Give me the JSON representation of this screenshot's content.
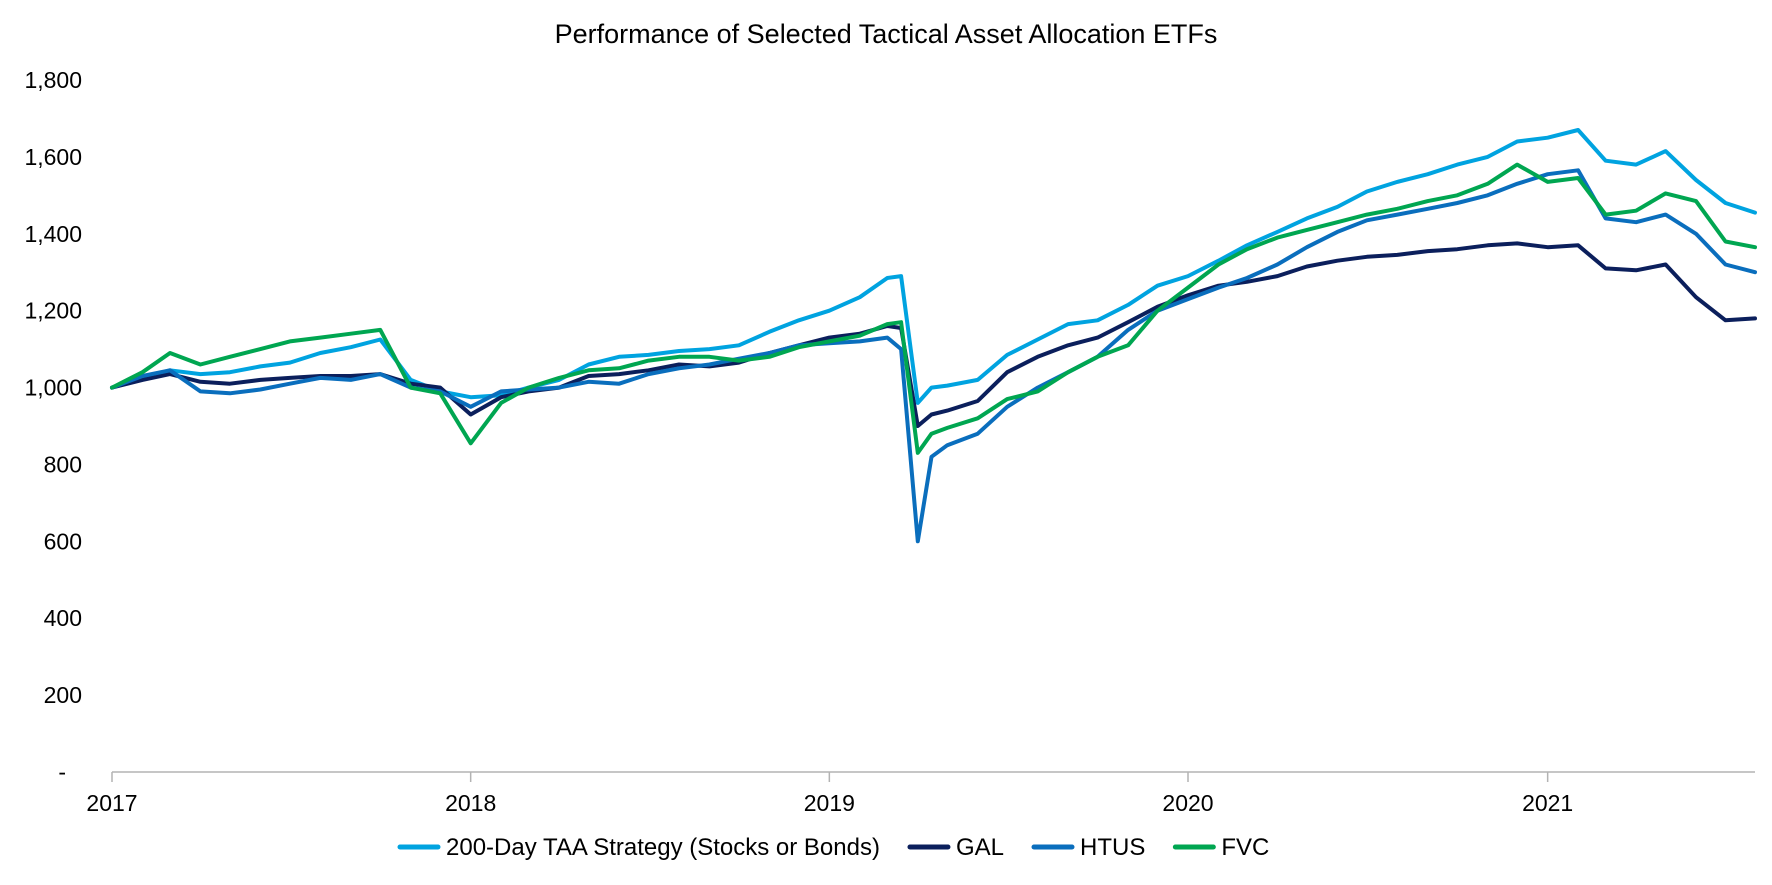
{
  "chart_data": {
    "type": "line",
    "title": "Performance of Selected Tactical Asset Allocation ETFs",
    "xlabel": "",
    "ylabel": "",
    "x_range": [
      "2017-01-01",
      "2021-07-31"
    ],
    "x_ticks": [
      "2017",
      "2018",
      "2019",
      "2020",
      "2021"
    ],
    "ylim": [
      0,
      1800
    ],
    "y_ticks": [
      {
        "value": 0,
        "label": "-"
      },
      {
        "value": 200,
        "label": "200"
      },
      {
        "value": 400,
        "label": "400"
      },
      {
        "value": 600,
        "label": "600"
      },
      {
        "value": 800,
        "label": "800"
      },
      {
        "value": 1000,
        "label": "1,000"
      },
      {
        "value": 1200,
        "label": "1,200"
      },
      {
        "value": 1400,
        "label": "1,400"
      },
      {
        "value": 1600,
        "label": "1,600"
      },
      {
        "value": 1800,
        "label": "1,800"
      }
    ],
    "grid": false,
    "legend_position": "bottom",
    "series": [
      {
        "name": "200-Day TAA Strategy (Stocks or Bonds)",
        "color": "#00a3e0",
        "points": [
          [
            "2017-01-01",
            1000
          ],
          [
            "2017-02-01",
            1025
          ],
          [
            "2017-03-01",
            1045
          ],
          [
            "2017-04-01",
            1035
          ],
          [
            "2017-05-01",
            1040
          ],
          [
            "2017-06-01",
            1055
          ],
          [
            "2017-07-01",
            1065
          ],
          [
            "2017-08-01",
            1090
          ],
          [
            "2017-09-01",
            1105
          ],
          [
            "2017-10-01",
            1125
          ],
          [
            "2017-11-01",
            1020
          ],
          [
            "2017-12-01",
            990
          ],
          [
            "2018-01-01",
            975
          ],
          [
            "2018-02-01",
            980
          ],
          [
            "2018-03-01",
            1000
          ],
          [
            "2018-04-01",
            1020
          ],
          [
            "2018-05-01",
            1060
          ],
          [
            "2018-06-01",
            1080
          ],
          [
            "2018-07-01",
            1085
          ],
          [
            "2018-08-01",
            1095
          ],
          [
            "2018-09-01",
            1100
          ],
          [
            "2018-10-01",
            1110
          ],
          [
            "2018-11-01",
            1145
          ],
          [
            "2018-12-01",
            1175
          ],
          [
            "2019-01-01",
            1200
          ],
          [
            "2019-02-01",
            1235
          ],
          [
            "2019-03-01",
            1285
          ],
          [
            "2019-03-15",
            1290
          ],
          [
            "2019-04-01",
            960
          ],
          [
            "2019-04-15",
            1000
          ],
          [
            "2019-05-01",
            1005
          ],
          [
            "2019-06-01",
            1020
          ],
          [
            "2019-07-01",
            1085
          ],
          [
            "2019-08-01",
            1125
          ],
          [
            "2019-09-01",
            1165
          ],
          [
            "2019-10-01",
            1175
          ],
          [
            "2019-11-01",
            1215
          ],
          [
            "2019-12-01",
            1265
          ],
          [
            "2020-01-01",
            1290
          ],
          [
            "2020-02-01",
            1330
          ],
          [
            "2020-03-01",
            1370
          ],
          [
            "2020-04-01",
            1405
          ],
          [
            "2020-05-01",
            1440
          ],
          [
            "2020-06-01",
            1470
          ],
          [
            "2020-07-01",
            1510
          ],
          [
            "2020-08-01",
            1535
          ],
          [
            "2020-09-01",
            1555
          ],
          [
            "2020-10-01",
            1580
          ],
          [
            "2020-11-01",
            1600
          ],
          [
            "2020-12-01",
            1640
          ],
          [
            "2021-01-01",
            1650
          ],
          [
            "2021-02-01",
            1670
          ],
          [
            "2021-03-01",
            1590
          ],
          [
            "2021-04-01",
            1580
          ],
          [
            "2021-05-01",
            1615
          ],
          [
            "2021-06-01",
            1540
          ],
          [
            "2021-07-01",
            1480
          ],
          [
            "2021-07-31",
            1455
          ]
        ]
      },
      {
        "name": "GAL",
        "color": "#0b1f5c",
        "points": [
          [
            "2017-01-01",
            1000
          ],
          [
            "2017-02-01",
            1020
          ],
          [
            "2017-03-01",
            1035
          ],
          [
            "2017-04-01",
            1015
          ],
          [
            "2017-05-01",
            1010
          ],
          [
            "2017-06-01",
            1020
          ],
          [
            "2017-07-01",
            1025
          ],
          [
            "2017-08-01",
            1030
          ],
          [
            "2017-09-01",
            1030
          ],
          [
            "2017-10-01",
            1035
          ],
          [
            "2017-11-01",
            1010
          ],
          [
            "2017-12-01",
            1000
          ],
          [
            "2018-01-01",
            930
          ],
          [
            "2018-02-01",
            975
          ],
          [
            "2018-03-01",
            990
          ],
          [
            "2018-04-01",
            1000
          ],
          [
            "2018-05-01",
            1030
          ],
          [
            "2018-06-01",
            1035
          ],
          [
            "2018-07-01",
            1045
          ],
          [
            "2018-08-01",
            1060
          ],
          [
            "2018-09-01",
            1055
          ],
          [
            "2018-10-01",
            1065
          ],
          [
            "2018-11-01",
            1090
          ],
          [
            "2018-12-01",
            1110
          ],
          [
            "2019-01-01",
            1130
          ],
          [
            "2019-02-01",
            1140
          ],
          [
            "2019-03-01",
            1160
          ],
          [
            "2019-03-15",
            1155
          ],
          [
            "2019-04-01",
            900
          ],
          [
            "2019-04-15",
            930
          ],
          [
            "2019-05-01",
            940
          ],
          [
            "2019-06-01",
            965
          ],
          [
            "2019-07-01",
            1040
          ],
          [
            "2019-08-01",
            1080
          ],
          [
            "2019-09-01",
            1110
          ],
          [
            "2019-10-01",
            1130
          ],
          [
            "2019-11-01",
            1170
          ],
          [
            "2019-12-01",
            1210
          ],
          [
            "2020-01-01",
            1240
          ],
          [
            "2020-02-01",
            1265
          ],
          [
            "2020-03-01",
            1275
          ],
          [
            "2020-04-01",
            1290
          ],
          [
            "2020-05-01",
            1315
          ],
          [
            "2020-06-01",
            1330
          ],
          [
            "2020-07-01",
            1340
          ],
          [
            "2020-08-01",
            1345
          ],
          [
            "2020-09-01",
            1355
          ],
          [
            "2020-10-01",
            1360
          ],
          [
            "2020-11-01",
            1370
          ],
          [
            "2020-12-01",
            1375
          ],
          [
            "2021-01-01",
            1365
          ],
          [
            "2021-02-01",
            1370
          ],
          [
            "2021-03-01",
            1310
          ],
          [
            "2021-04-01",
            1305
          ],
          [
            "2021-05-01",
            1320
          ],
          [
            "2021-06-01",
            1235
          ],
          [
            "2021-07-01",
            1175
          ],
          [
            "2021-07-31",
            1180
          ]
        ]
      },
      {
        "name": "HTUS",
        "color": "#0a6ebd",
        "points": [
          [
            "2017-01-01",
            1000
          ],
          [
            "2017-02-01",
            1030
          ],
          [
            "2017-03-01",
            1045
          ],
          [
            "2017-04-01",
            990
          ],
          [
            "2017-05-01",
            985
          ],
          [
            "2017-06-01",
            995
          ],
          [
            "2017-07-01",
            1010
          ],
          [
            "2017-08-01",
            1025
          ],
          [
            "2017-09-01",
            1020
          ],
          [
            "2017-10-01",
            1035
          ],
          [
            "2017-11-01",
            1000
          ],
          [
            "2017-12-01",
            990
          ],
          [
            "2018-01-01",
            950
          ],
          [
            "2018-02-01",
            990
          ],
          [
            "2018-03-01",
            995
          ],
          [
            "2018-04-01",
            1000
          ],
          [
            "2018-05-01",
            1015
          ],
          [
            "2018-06-01",
            1010
          ],
          [
            "2018-07-01",
            1035
          ],
          [
            "2018-08-01",
            1050
          ],
          [
            "2018-09-01",
            1060
          ],
          [
            "2018-10-01",
            1075
          ],
          [
            "2018-11-01",
            1090
          ],
          [
            "2018-12-01",
            1110
          ],
          [
            "2019-01-01",
            1115
          ],
          [
            "2019-02-01",
            1120
          ],
          [
            "2019-03-01",
            1130
          ],
          [
            "2019-03-15",
            1100
          ],
          [
            "2019-04-01",
            600
          ],
          [
            "2019-04-15",
            820
          ],
          [
            "2019-05-01",
            850
          ],
          [
            "2019-06-01",
            880
          ],
          [
            "2019-07-01",
            950
          ],
          [
            "2019-08-01",
            1000
          ],
          [
            "2019-09-01",
            1040
          ],
          [
            "2019-10-01",
            1080
          ],
          [
            "2019-11-01",
            1150
          ],
          [
            "2019-12-01",
            1200
          ],
          [
            "2020-01-01",
            1230
          ],
          [
            "2020-02-01",
            1260
          ],
          [
            "2020-03-01",
            1285
          ],
          [
            "2020-04-01",
            1320
          ],
          [
            "2020-05-01",
            1365
          ],
          [
            "2020-06-01",
            1405
          ],
          [
            "2020-07-01",
            1435
          ],
          [
            "2020-08-01",
            1450
          ],
          [
            "2020-09-01",
            1465
          ],
          [
            "2020-10-01",
            1480
          ],
          [
            "2020-11-01",
            1500
          ],
          [
            "2020-12-01",
            1530
          ],
          [
            "2021-01-01",
            1555
          ],
          [
            "2021-02-01",
            1565
          ],
          [
            "2021-03-01",
            1440
          ],
          [
            "2021-04-01",
            1430
          ],
          [
            "2021-05-01",
            1450
          ],
          [
            "2021-06-01",
            1400
          ],
          [
            "2021-07-01",
            1320
          ],
          [
            "2021-07-31",
            1300
          ]
        ]
      },
      {
        "name": "FVC",
        "color": "#00a651",
        "points": [
          [
            "2017-01-01",
            1000
          ],
          [
            "2017-02-01",
            1040
          ],
          [
            "2017-03-01",
            1090
          ],
          [
            "2017-04-01",
            1060
          ],
          [
            "2017-05-01",
            1080
          ],
          [
            "2017-06-01",
            1100
          ],
          [
            "2017-07-01",
            1120
          ],
          [
            "2017-08-01",
            1130
          ],
          [
            "2017-09-01",
            1140
          ],
          [
            "2017-10-01",
            1150
          ],
          [
            "2017-11-01",
            1000
          ],
          [
            "2017-12-01",
            985
          ],
          [
            "2018-01-01",
            855
          ],
          [
            "2018-02-01",
            960
          ],
          [
            "2018-03-01",
            1000
          ],
          [
            "2018-04-01",
            1025
          ],
          [
            "2018-05-01",
            1045
          ],
          [
            "2018-06-01",
            1050
          ],
          [
            "2018-07-01",
            1070
          ],
          [
            "2018-08-01",
            1080
          ],
          [
            "2018-09-01",
            1080
          ],
          [
            "2018-10-01",
            1070
          ],
          [
            "2018-11-01",
            1080
          ],
          [
            "2018-12-01",
            1105
          ],
          [
            "2019-01-01",
            1120
          ],
          [
            "2019-02-01",
            1135
          ],
          [
            "2019-03-01",
            1165
          ],
          [
            "2019-03-15",
            1170
          ],
          [
            "2019-04-01",
            830
          ],
          [
            "2019-04-15",
            880
          ],
          [
            "2019-05-01",
            895
          ],
          [
            "2019-06-01",
            920
          ],
          [
            "2019-07-01",
            970
          ],
          [
            "2019-08-01",
            990
          ],
          [
            "2019-09-01",
            1040
          ],
          [
            "2019-10-01",
            1080
          ],
          [
            "2019-11-01",
            1110
          ],
          [
            "2019-12-01",
            1200
          ],
          [
            "2020-01-01",
            1260
          ],
          [
            "2020-02-01",
            1320
          ],
          [
            "2020-03-01",
            1360
          ],
          [
            "2020-04-01",
            1390
          ],
          [
            "2020-05-01",
            1410
          ],
          [
            "2020-06-01",
            1430
          ],
          [
            "2020-07-01",
            1450
          ],
          [
            "2020-08-01",
            1465
          ],
          [
            "2020-09-01",
            1485
          ],
          [
            "2020-10-01",
            1500
          ],
          [
            "2020-11-01",
            1530
          ],
          [
            "2020-12-01",
            1580
          ],
          [
            "2021-01-01",
            1535
          ],
          [
            "2021-02-01",
            1545
          ],
          [
            "2021-03-01",
            1450
          ],
          [
            "2021-04-01",
            1460
          ],
          [
            "2021-05-01",
            1505
          ],
          [
            "2021-06-01",
            1485
          ],
          [
            "2021-07-01",
            1380
          ],
          [
            "2021-07-31",
            1365
          ]
        ]
      }
    ]
  }
}
